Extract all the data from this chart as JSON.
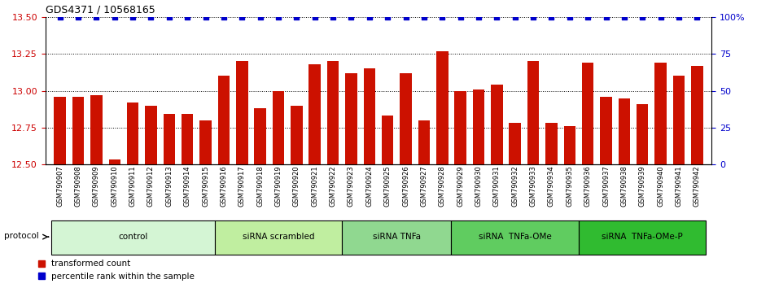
{
  "title": "GDS4371 / 10568165",
  "samples": [
    "GSM790907",
    "GSM790908",
    "GSM790909",
    "GSM790910",
    "GSM790911",
    "GSM790912",
    "GSM790913",
    "GSM790914",
    "GSM790915",
    "GSM790916",
    "GSM790917",
    "GSM790918",
    "GSM790919",
    "GSM790920",
    "GSM790921",
    "GSM790922",
    "GSM790923",
    "GSM790924",
    "GSM790925",
    "GSM790926",
    "GSM790927",
    "GSM790928",
    "GSM790929",
    "GSM790930",
    "GSM790931",
    "GSM790932",
    "GSM790933",
    "GSM790934",
    "GSM790935",
    "GSM790936",
    "GSM790937",
    "GSM790938",
    "GSM790939",
    "GSM790940",
    "GSM790941",
    "GSM790942"
  ],
  "red_values": [
    12.96,
    12.96,
    12.97,
    12.53,
    12.92,
    12.9,
    12.84,
    12.84,
    12.8,
    13.1,
    13.2,
    12.88,
    13.0,
    12.9,
    13.18,
    13.2,
    13.12,
    13.15,
    12.83,
    13.12,
    12.8,
    13.27,
    13.0,
    13.01,
    13.04,
    12.78,
    13.2,
    12.78,
    12.76,
    13.19,
    12.96,
    12.95,
    12.91,
    13.19,
    13.1,
    13.17
  ],
  "blue_values": [
    100,
    100,
    100,
    100,
    100,
    100,
    100,
    100,
    100,
    100,
    100,
    100,
    100,
    100,
    100,
    100,
    100,
    100,
    100,
    100,
    100,
    100,
    100,
    100,
    100,
    100,
    100,
    100,
    100,
    100,
    100,
    100,
    100,
    100,
    100,
    100
  ],
  "groups": [
    {
      "label": "control",
      "start": 0,
      "end": 9,
      "color": "#d4f5d4"
    },
    {
      "label": "siRNA scrambled",
      "start": 9,
      "end": 16,
      "color": "#c0eea0"
    },
    {
      "label": "siRNA TNFa",
      "start": 16,
      "end": 22,
      "color": "#90d890"
    },
    {
      "label": "siRNA  TNFa-OMe",
      "start": 22,
      "end": 29,
      "color": "#60cc60"
    },
    {
      "label": "siRNA  TNFa-OMe-P",
      "start": 29,
      "end": 36,
      "color": "#30bb30"
    }
  ],
  "ylim_left": [
    12.5,
    13.5
  ],
  "ylim_right": [
    0,
    100
  ],
  "bar_color": "#cc1100",
  "dot_color": "#0000cc",
  "grid_color": "#555555",
  "left_tick_color": "#cc0000",
  "right_tick_color": "#0000cc"
}
